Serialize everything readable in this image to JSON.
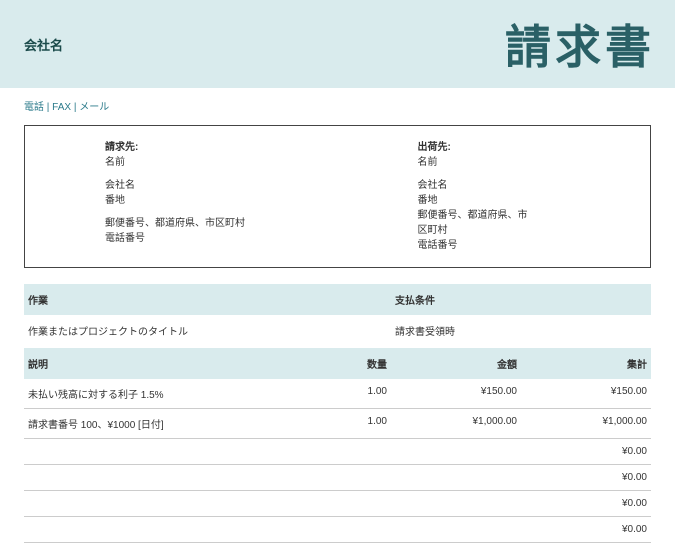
{
  "colors": {
    "band_bg": "#d9ebed",
    "title_color": "#2a6066",
    "contact_color": "#2a7a8a",
    "text": "#333333",
    "border": "#444444",
    "row_border": "#cccccc",
    "page_bg": "#ffffff"
  },
  "header": {
    "company_label": "会社名",
    "invoice_title": "請求書",
    "contact_line": "電話 | FAX | メール"
  },
  "bill_to": {
    "label": "請求先:",
    "name": "名前",
    "company": "会社名",
    "street": "番地",
    "postal": "郵便番号、都道府県、市区町村",
    "phone": "電話番号"
  },
  "ship_to": {
    "label": "出荷先:",
    "name": "名前",
    "company": "会社名",
    "street": "番地",
    "postal1": "郵便番号、都道府県、市",
    "postal2": "区町村",
    "phone": "電話番号"
  },
  "work": {
    "col_work": "作業",
    "col_terms": "支払条件",
    "work_value": "作業またはプロジェクトのタイトル",
    "terms_value": "請求書受領時"
  },
  "table": {
    "col_desc": "説明",
    "col_qty": "数量",
    "col_amt": "金額",
    "col_total": "集計",
    "rows": [
      {
        "desc": "未払い残高に対する利子 1.5%",
        "qty": "1.00",
        "amt": "¥150.00",
        "total": "¥150.00"
      },
      {
        "desc": "請求書番号 100、¥1000 [日付]",
        "qty": "1.00",
        "amt": "¥1,000.00",
        "total": "¥1,000.00"
      },
      {
        "desc": "",
        "qty": "",
        "amt": "",
        "total": "¥0.00"
      },
      {
        "desc": "",
        "qty": "",
        "amt": "",
        "total": "¥0.00"
      },
      {
        "desc": "",
        "qty": "",
        "amt": "",
        "total": "¥0.00"
      },
      {
        "desc": "",
        "qty": "",
        "amt": "",
        "total": "¥0.00"
      }
    ]
  }
}
